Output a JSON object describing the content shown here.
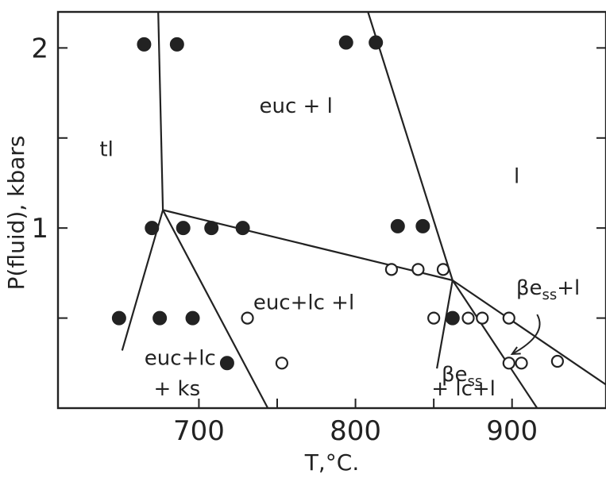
{
  "chart_data": {
    "type": "scatter",
    "title": "",
    "xlabel": "T,°C.",
    "ylabel": "P(fluid), kbars",
    "xlim": [
      610,
      960
    ],
    "ylim": [
      0,
      2.2
    ],
    "grid": false,
    "x_ticks": [
      700,
      750,
      800,
      850,
      900
    ],
    "x_tick_labels": [
      "700",
      "",
      "800",
      "",
      "900"
    ],
    "y_ticks": [
      0.5,
      1,
      1.5,
      2
    ],
    "y_tick_labels": [
      "",
      "1",
      "",
      "2"
    ],
    "series": [
      {
        "marker": "filled",
        "points": [
          {
            "x": 665,
            "y": 2.02
          },
          {
            "x": 686,
            "y": 2.02
          },
          {
            "x": 794,
            "y": 2.03
          },
          {
            "x": 813,
            "y": 2.03
          },
          {
            "x": 670,
            "y": 1.0
          },
          {
            "x": 690,
            "y": 1.0
          },
          {
            "x": 708,
            "y": 1.0
          },
          {
            "x": 728,
            "y": 1.0
          },
          {
            "x": 827,
            "y": 1.01
          },
          {
            "x": 843,
            "y": 1.01
          },
          {
            "x": 649,
            "y": 0.5
          },
          {
            "x": 675,
            "y": 0.5
          },
          {
            "x": 696,
            "y": 0.5
          },
          {
            "x": 862,
            "y": 0.5
          },
          {
            "x": 718,
            "y": 0.25
          }
        ]
      },
      {
        "marker": "open",
        "points": [
          {
            "x": 823,
            "y": 0.77
          },
          {
            "x": 840,
            "y": 0.77
          },
          {
            "x": 856,
            "y": 0.77
          },
          {
            "x": 731,
            "y": 0.5
          },
          {
            "x": 850,
            "y": 0.5
          },
          {
            "x": 872,
            "y": 0.5
          },
          {
            "x": 881,
            "y": 0.5
          },
          {
            "x": 898,
            "y": 0.5
          },
          {
            "x": 753,
            "y": 0.25
          },
          {
            "x": 898,
            "y": 0.25
          },
          {
            "x": 906,
            "y": 0.25
          },
          {
            "x": 929,
            "y": 0.26
          }
        ]
      }
    ],
    "boundaries": [
      {
        "points": [
          [
            674,
            2.2
          ],
          [
            677,
            1.1
          ]
        ]
      },
      {
        "points": [
          [
            677,
            1.1
          ],
          [
            651,
            0.32
          ]
        ]
      },
      {
        "points": [
          [
            677,
            1.1
          ],
          [
            862,
            0.71
          ]
        ]
      },
      {
        "points": [
          [
            677,
            1.1
          ],
          [
            744,
            0.0
          ]
        ]
      },
      {
        "points": [
          [
            808,
            2.2
          ],
          [
            862,
            0.71
          ]
        ]
      },
      {
        "points": [
          [
            862,
            0.71
          ],
          [
            960,
            0.13
          ]
        ]
      },
      {
        "points": [
          [
            862,
            0.71
          ],
          [
            852,
            0.22
          ]
        ]
      },
      {
        "points": [
          [
            862,
            0.71
          ],
          [
            916,
            0.0
          ]
        ]
      }
    ],
    "region_labels": [
      {
        "text": "tl",
        "x": 641,
        "y": 1.4
      },
      {
        "text": "euc + l",
        "x": 762,
        "y": 1.64
      },
      {
        "text": "l",
        "x": 903,
        "y": 1.25
      },
      {
        "text": "euc+lc +l",
        "x": 767,
        "y": 0.55
      },
      {
        "text": "euc+lc",
        "x": 688,
        "y": 0.24
      },
      {
        "text": "+ ks",
        "x": 686,
        "y": 0.07
      },
      {
        "text": "βe",
        "sub": "ss",
        "suffix": "+l",
        "x": 923,
        "y": 0.63
      },
      {
        "text": "βe",
        "sub": "ss",
        "suffix": "",
        "x": 868,
        "y": 0.15
      },
      {
        "text": "+ lc+l",
        "x": 869,
        "y": 0.07
      }
    ],
    "annotations": [
      {
        "type": "arrow",
        "from": [
          916,
          0.52
        ],
        "to": [
          900,
          0.3
        ]
      }
    ]
  }
}
